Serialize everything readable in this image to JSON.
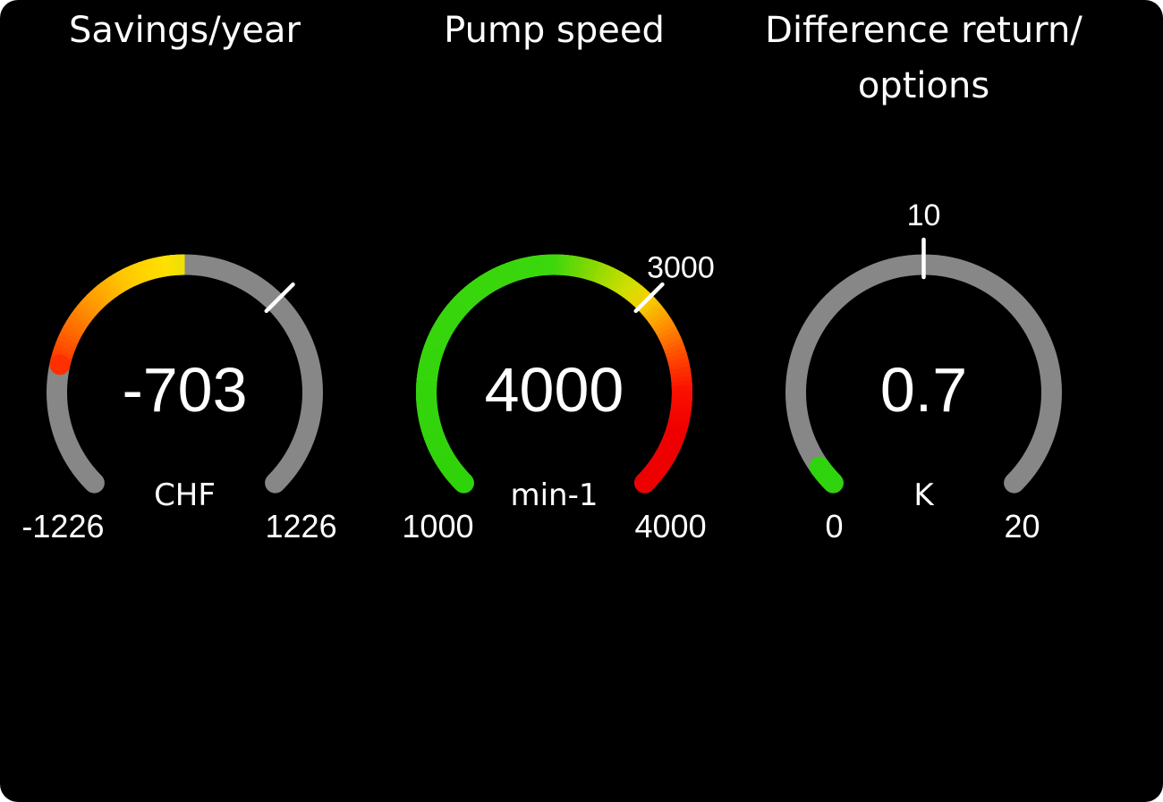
{
  "page": {
    "background_color": "#000000",
    "text_color": "#ffffff"
  },
  "chart_data": [
    {
      "type": "gauge",
      "title": "Savings/year",
      "value": -703,
      "value_label": "-703",
      "unit": "CHF",
      "min": -1226,
      "max": 1226,
      "min_label": "-1226",
      "max_label": "1226",
      "start_angle_deg": -135,
      "end_angle_deg": 135,
      "track_color": "#878787",
      "tick": {
        "value": 409,
        "label": ""
      },
      "fill": {
        "from_value": -703,
        "to_value": 0,
        "round_start": true,
        "round_end": false
      },
      "gradient_stops": [
        [
          0.213,
          "#ff3000"
        ],
        [
          0.27,
          "#ff6600"
        ],
        [
          0.33,
          "#ff9900"
        ],
        [
          0.4,
          "#ffc800"
        ],
        [
          0.47,
          "#ffe000"
        ],
        [
          0.5,
          "#ecdf05"
        ]
      ]
    },
    {
      "type": "gauge",
      "title": "Pump speed",
      "value": 4000,
      "value_label": "4000",
      "unit": "min-1",
      "min": 1000,
      "max": 4000,
      "min_label": "1000",
      "max_label": "4000",
      "start_angle_deg": -135,
      "end_angle_deg": 135,
      "track_color": "#878787",
      "tick": {
        "value": 3000,
        "label": "3000"
      },
      "fill": {
        "from_value": 1000,
        "to_value": 4000,
        "round_start": true,
        "round_end": true
      },
      "gradient_stops": [
        [
          0.0,
          "#2fd30a"
        ],
        [
          0.5,
          "#3cd70d"
        ],
        [
          0.57,
          "#8ed900"
        ],
        [
          0.63,
          "#cfdf00"
        ],
        [
          0.67,
          "#f6cf00"
        ],
        [
          0.72,
          "#ff9000"
        ],
        [
          0.77,
          "#ff4f00"
        ],
        [
          0.83,
          "#fb1000"
        ],
        [
          0.9,
          "#ef0000"
        ],
        [
          1.0,
          "#ee0000"
        ]
      ]
    },
    {
      "type": "gauge",
      "title": "Difference return/\noptions",
      "value": 0.7,
      "value_label": "0.7",
      "unit": "K",
      "min": 0,
      "max": 20,
      "min_label": "0",
      "max_label": "20",
      "start_angle_deg": -135,
      "end_angle_deg": 135,
      "track_color": "#878787",
      "tick": {
        "value": 10,
        "label": "10"
      },
      "fill": {
        "from_value": 0,
        "to_value": 0.7,
        "round_start": true,
        "round_end": true
      },
      "gradient_stops": [
        [
          0.0,
          "#2fd30e"
        ],
        [
          0.035,
          "#2fd30e"
        ]
      ]
    }
  ]
}
